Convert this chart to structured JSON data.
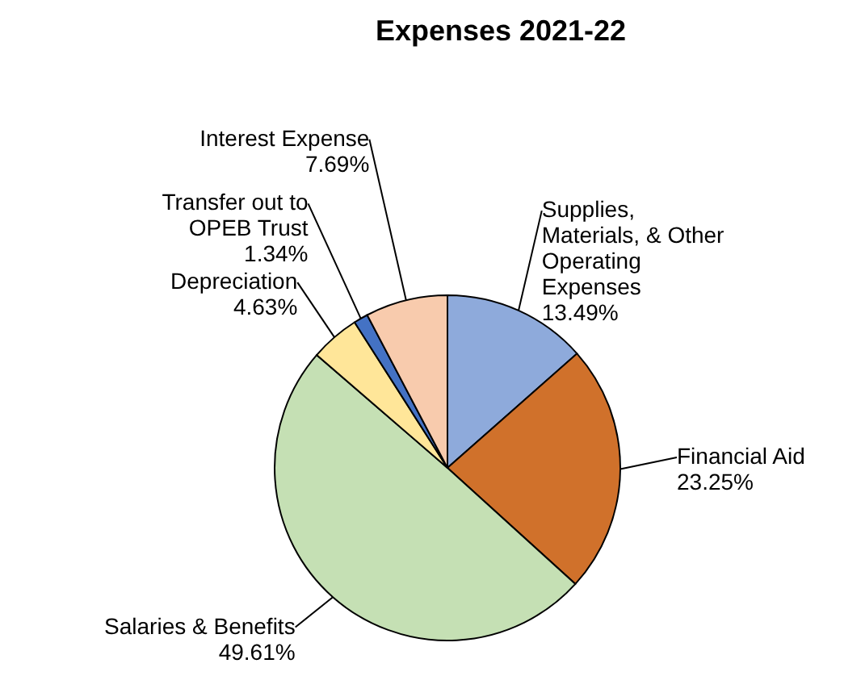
{
  "chart_data": {
    "type": "pie",
    "title": "Expenses 2021-22",
    "categories": [
      "Supplies,\nMaterials, & Other\nOperating\nExpenses",
      "Financial Aid",
      "Salaries & Benefits",
      "Depreciation",
      "Transfer out to\nOPEB Trust",
      "Interest Expense"
    ],
    "values": [
      13.49,
      23.25,
      49.61,
      4.63,
      1.34,
      7.69
    ],
    "colors": [
      "#8eaadb",
      "#d0712b",
      "#c5e0b4",
      "#ffe699",
      "#4472c4",
      "#f8cbad"
    ],
    "value_labels": [
      "13.49%",
      "23.25%",
      "49.61%",
      "4.63%",
      "1.34%",
      "7.69%"
    ]
  }
}
